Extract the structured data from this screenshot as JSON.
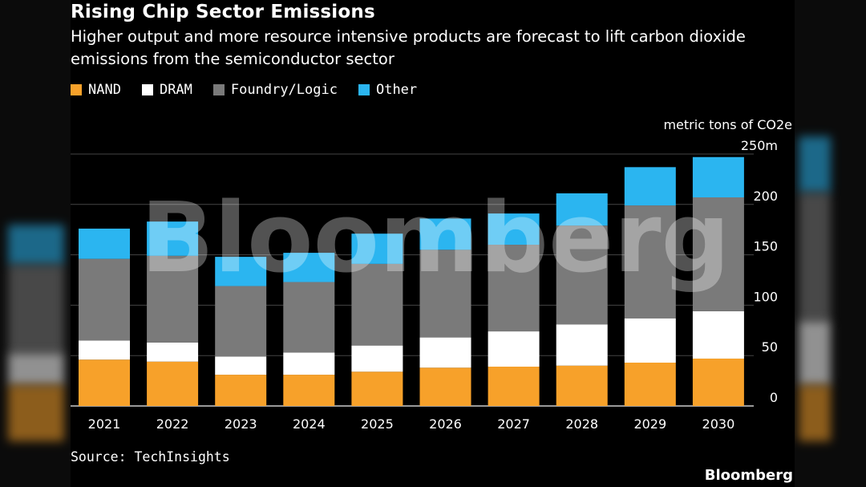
{
  "title": "Rising Chip Sector Emissions",
  "subtitle": "Higher output and more resource intensive products are forecast to lift carbon dioxide emissions from the semiconductor sector",
  "source": "Source: TechInsights",
  "brand": "Bloomberg",
  "watermark": "Bloomberg",
  "colors": {
    "nand": "#f7a12a",
    "dram": "#ffffff",
    "foundry": "#7a7a7a",
    "other": "#2bb5f0",
    "background": "#000000"
  },
  "chart_data": {
    "type": "bar",
    "stacked": true,
    "title": "Rising Chip Sector Emissions",
    "unit_label": "metric tons of CO2e",
    "categories": [
      "2021",
      "2022",
      "2023",
      "2024",
      "2025",
      "2026",
      "2027",
      "2028",
      "2029",
      "2030"
    ],
    "series": [
      {
        "name": "NAND",
        "color": "#f7a12a",
        "values": [
          46,
          44,
          31,
          31,
          34,
          38,
          39,
          40,
          43,
          47
        ]
      },
      {
        "name": "DRAM",
        "color": "#ffffff",
        "values": [
          19,
          19,
          18,
          22,
          26,
          30,
          35,
          41,
          44,
          47
        ]
      },
      {
        "name": "Foundry/Logic",
        "color": "#7a7a7a",
        "values": [
          81,
          86,
          70,
          70,
          81,
          87,
          86,
          98,
          112,
          113
        ]
      },
      {
        "name": "Other",
        "color": "#2bb5f0",
        "values": [
          30,
          34,
          29,
          29,
          30,
          31,
          31,
          32,
          38,
          40
        ]
      }
    ],
    "ylim": [
      0,
      250
    ],
    "yticks": [
      0,
      50,
      100,
      150,
      200,
      250
    ],
    "ytick_labels": [
      "0",
      "50",
      "100",
      "150",
      "200",
      "250m"
    ],
    "grid": true,
    "legend_position": "top-left",
    "xlabel": "",
    "ylabel": ""
  }
}
